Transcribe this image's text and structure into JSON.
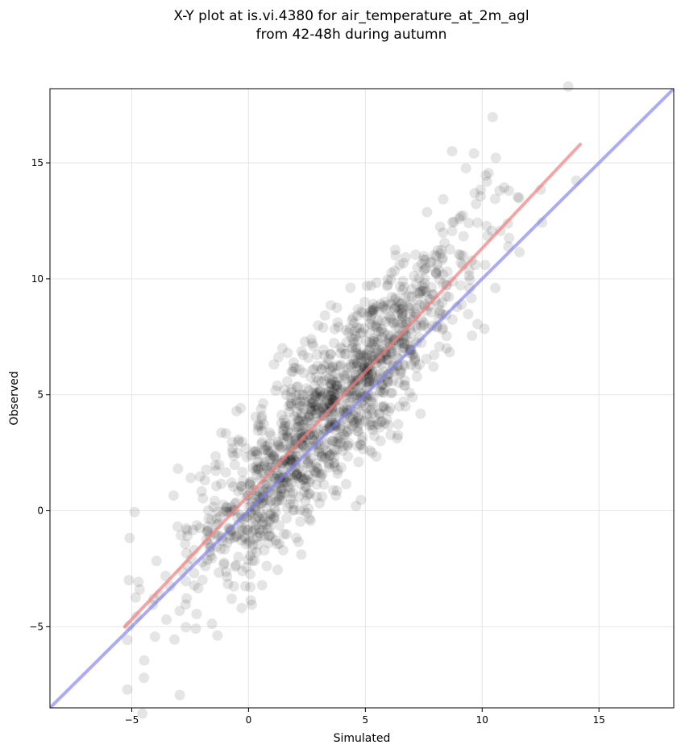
{
  "chart_data": {
    "type": "scatter",
    "title_lines": [
      "X-Y plot at is.vi.4380 for air_temperature_at_2m_agl",
      "from 42-48h during autumn"
    ],
    "xlabel": "Simulated",
    "ylabel": "Observed",
    "xlim": [
      -8.5,
      18.2
    ],
    "ylim": [
      -8.5,
      18.2
    ],
    "xticks": [
      -5,
      0,
      5,
      10,
      15
    ],
    "yticks": [
      -5,
      0,
      5,
      10,
      15
    ],
    "xtick_labels": [
      "−5",
      "0",
      "5",
      "10",
      "15"
    ],
    "ytick_labels": [
      "−5",
      "0",
      "5",
      "10",
      "15"
    ],
    "grid": true,
    "colors": {
      "points": "#000000",
      "fit_line": "#f08080",
      "identity_line": "#8080f0",
      "grid": "#e6e6e6"
    },
    "point_cloud": {
      "count": 1400,
      "seed": 4380,
      "x_center": 3.5,
      "x_std": 3.0,
      "x_range": [
        -5.3,
        14.2
      ],
      "fit_slope": 1.06,
      "fit_intercept": 0.65,
      "residual_std": 1.75
    },
    "fit_line": {
      "x": [
        -5.3,
        14.2
      ],
      "y": [
        -5.0,
        15.8
      ]
    },
    "identity_line": {
      "x": [
        -8.5,
        18.2
      ],
      "y": [
        -8.5,
        18.2
      ]
    }
  }
}
